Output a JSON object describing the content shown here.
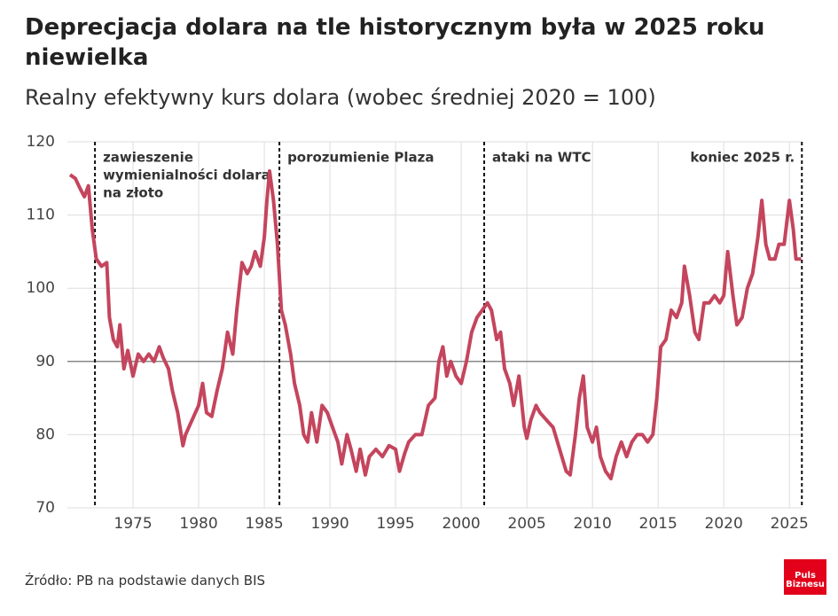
{
  "chart_data": {
    "type": "line",
    "title": "Deprecjacja dolara na tle historycznym była w 2025 roku niewielka",
    "subtitle": "Realny efektywny kurs dolara (wobec średniej 2020 = 100)",
    "source": "Źródło: PB na podstawie danych BIS",
    "logo": [
      "Puls",
      "Biznesu"
    ],
    "xlim": [
      1970,
      2026
    ],
    "xticks": [
      1975,
      1980,
      1985,
      1990,
      1995,
      2000,
      2005,
      2010,
      2015,
      2020,
      2025
    ],
    "ylim": [
      70,
      120
    ],
    "yticks": [
      70,
      80,
      90,
      100,
      110,
      120
    ],
    "grid": true,
    "reference_line": 90,
    "annotations": [
      {
        "x": 1972.1,
        "label": [
          "zawieszenie",
          "wymienialności dolara",
          "na złoto"
        ]
      },
      {
        "x": 1986.15,
        "label": [
          "porozumienie Plaza"
        ]
      },
      {
        "x": 2001.75,
        "label": [
          "ataki na WTC"
        ]
      },
      {
        "x": 2025.95,
        "label": [
          "koniec 2025 r."
        ]
      }
    ],
    "series": [
      {
        "name": "Realny efektywny kurs dolara",
        "color": "#c4455d",
        "x": [
          1970.2,
          1970.6,
          1971.0,
          1971.3,
          1971.6,
          1971.9,
          1972.2,
          1972.6,
          1973.0,
          1973.2,
          1973.5,
          1973.8,
          1974.0,
          1974.3,
          1974.6,
          1975.0,
          1975.4,
          1975.8,
          1976.2,
          1976.6,
          1977.0,
          1977.3,
          1977.7,
          1978.0,
          1978.4,
          1978.8,
          1979.0,
          1979.5,
          1980.0,
          1980.3,
          1980.6,
          1981.0,
          1981.4,
          1981.8,
          1982.2,
          1982.6,
          1982.9,
          1983.3,
          1983.7,
          1984.0,
          1984.3,
          1984.7,
          1985.0,
          1985.2,
          1985.4,
          1985.7,
          1986.0,
          1986.3,
          1986.6,
          1987.0,
          1987.3,
          1987.7,
          1988.0,
          1988.3,
          1988.6,
          1989.0,
          1989.4,
          1989.8,
          1990.2,
          1990.6,
          1990.9,
          1991.3,
          1991.6,
          1992.0,
          1992.3,
          1992.7,
          1993.0,
          1993.5,
          1994.0,
          1994.5,
          1995.0,
          1995.3,
          1995.7,
          1996.0,
          1996.5,
          1997.0,
          1997.5,
          1998.0,
          1998.3,
          1998.6,
          1998.9,
          1999.2,
          1999.6,
          2000.0,
          2000.4,
          2000.8,
          2001.2,
          2001.6,
          2002.0,
          2002.3,
          2002.7,
          2003.0,
          2003.3,
          2003.7,
          2004.0,
          2004.4,
          2004.8,
          2005.0,
          2005.3,
          2005.7,
          2006.0,
          2006.5,
          2007.0,
          2007.5,
          2008.0,
          2008.3,
          2008.7,
          2009.0,
          2009.3,
          2009.6,
          2010.0,
          2010.3,
          2010.6,
          2011.0,
          2011.4,
          2011.8,
          2012.2,
          2012.6,
          2013.0,
          2013.4,
          2013.8,
          2014.2,
          2014.6,
          2014.9,
          2015.2,
          2015.6,
          2016.0,
          2016.4,
          2016.8,
          2017.0,
          2017.4,
          2017.8,
          2018.1,
          2018.5,
          2018.9,
          2019.3,
          2019.7,
          2020.0,
          2020.3,
          2020.7,
          2021.0,
          2021.4,
          2021.8,
          2022.2,
          2022.6,
          2022.9,
          2023.2,
          2023.5,
          2023.9,
          2024.2,
          2024.6,
          2025.0,
          2025.3,
          2025.5,
          2025.9
        ],
        "values": [
          115.5,
          115,
          113.5,
          112.5,
          114,
          108,
          104,
          103,
          103.5,
          96,
          93,
          92,
          95,
          89,
          91.5,
          88,
          91,
          90,
          91,
          90,
          92,
          90.5,
          89,
          86,
          83,
          78.5,
          80,
          82,
          84,
          87,
          83,
          82.5,
          86,
          89,
          94,
          91,
          97,
          103.5,
          102,
          103,
          105,
          103,
          107,
          112,
          116,
          112,
          106,
          97,
          95,
          91,
          87,
          84,
          80,
          79,
          83,
          79,
          84,
          83,
          81,
          79,
          76,
          80,
          78,
          75,
          78,
          74.5,
          77,
          78,
          77,
          78.5,
          78,
          75,
          77.5,
          79,
          80,
          80,
          84,
          85,
          90,
          92,
          88,
          90,
          88,
          87,
          90,
          94,
          96,
          97,
          98,
          97,
          93,
          94,
          89,
          87,
          84,
          88,
          81,
          79.5,
          82,
          84,
          83,
          82,
          81,
          78,
          75,
          74.5,
          80,
          85,
          88,
          81,
          79,
          81,
          77,
          75,
          74,
          77,
          79,
          77,
          79,
          80,
          80,
          79,
          80,
          85,
          92,
          93,
          97,
          96,
          98,
          103,
          99,
          94,
          93,
          98,
          98,
          99,
          98,
          99,
          105,
          99,
          95,
          96,
          100,
          102,
          107,
          112,
          106,
          104,
          104,
          106,
          106,
          112,
          108,
          104,
          104
        ]
      }
    ]
  }
}
